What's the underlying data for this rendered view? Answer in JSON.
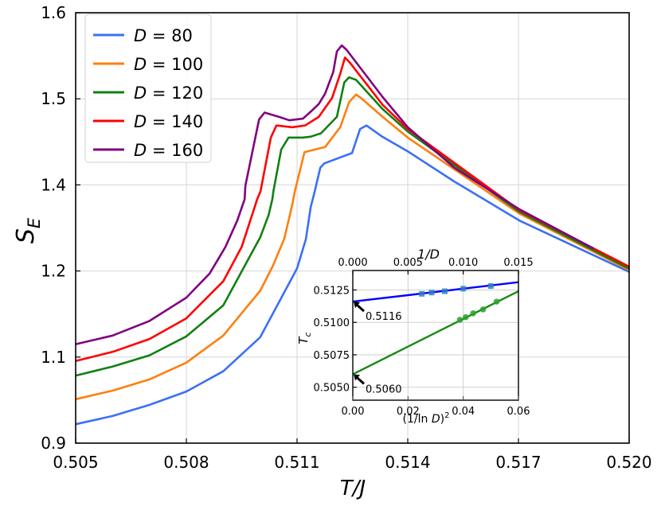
{
  "chart_data": [
    {
      "type": "line",
      "xlabel": "T/J",
      "ylabel": "S_E",
      "xlim": [
        0.505,
        0.52
      ],
      "x_ticks": [
        0.505,
        0.508,
        0.511,
        0.514,
        0.517,
        0.52
      ],
      "x_tick_labels": [
        "0.505",
        "0.508",
        "0.511",
        "0.514",
        "0.517",
        "0.520"
      ],
      "y_ticks": [
        0.9,
        1.1,
        1.2,
        1.4,
        1.5,
        1.6
      ],
      "y_tick_labels": [
        "0.9",
        "1.1",
        "1.2",
        "1.4",
        "1.5",
        "1.6"
      ],
      "y_axis_note_tick_spacing": "equal",
      "grid": true,
      "legend_placement": "top-left",
      "series": [
        {
          "name": "D = 80",
          "legend_var": "D",
          "legend_val": "80",
          "color": "#3b6ff5",
          "x": [
            0.505,
            0.506,
            0.507,
            0.508,
            0.509,
            0.51,
            0.511,
            0.51124,
            0.51137,
            0.51148,
            0.51163,
            0.51174,
            0.51249,
            0.51271,
            0.51288,
            0.51331,
            0.514,
            0.51526,
            0.51703,
            0.52
          ],
          "y": [
            0.944,
            0.963,
            0.989,
            1.02,
            1.067,
            1.123,
            1.206,
            1.274,
            1.348,
            1.385,
            1.42,
            1.425,
            1.437,
            1.465,
            1.469,
            1.456,
            1.439,
            1.404,
            1.317,
            1.199
          ]
        },
        {
          "name": "D = 100",
          "legend_var": "D",
          "legend_val": "100",
          "color": "#ff7f0e",
          "x": [
            0.505,
            0.506,
            0.507,
            0.508,
            0.509,
            0.51,
            0.51035,
            0.51065,
            0.51087,
            0.51094,
            0.5112,
            0.51148,
            0.51176,
            0.51217,
            0.51241,
            0.5126,
            0.51273,
            0.51332,
            0.514,
            0.51703,
            0.52
          ],
          "y": [
            1.002,
            1.022,
            1.048,
            1.087,
            1.125,
            1.177,
            1.213,
            1.274,
            1.354,
            1.385,
            1.438,
            1.441,
            1.444,
            1.467,
            1.496,
            1.505,
            1.501,
            1.479,
            1.455,
            1.333,
            1.202
          ]
        },
        {
          "name": "D = 120",
          "legend_var": "D",
          "legend_val": "120",
          "color": "#118011",
          "x": [
            0.505,
            0.506,
            0.507,
            0.508,
            0.509,
            0.51,
            0.51023,
            0.51033,
            0.51036,
            0.51057,
            0.51077,
            0.51116,
            0.51137,
            0.51165,
            0.51208,
            0.51228,
            0.51241,
            0.5126,
            0.51332,
            0.514,
            0.51703,
            0.52
          ],
          "y": [
            1.057,
            1.078,
            1.102,
            1.124,
            1.16,
            1.278,
            1.33,
            1.367,
            1.385,
            1.441,
            1.455,
            1.455,
            1.456,
            1.46,
            1.479,
            1.519,
            1.525,
            1.522,
            1.488,
            1.462,
            1.337,
            1.205
          ]
        },
        {
          "name": "D = 140",
          "legend_var": "D",
          "legend_val": "140",
          "color": "#ff0000",
          "x": [
            0.505,
            0.506,
            0.507,
            0.508,
            0.509,
            0.5095,
            0.50992,
            0.51001,
            0.51029,
            0.51044,
            0.51087,
            0.51122,
            0.51159,
            0.51195,
            0.51217,
            0.5123,
            0.51245,
            0.51332,
            0.514,
            0.51703,
            0.52
          ],
          "y": [
            1.091,
            1.106,
            1.121,
            1.145,
            1.188,
            1.256,
            1.367,
            1.385,
            1.455,
            1.469,
            1.467,
            1.469,
            1.479,
            1.501,
            1.529,
            1.548,
            1.541,
            1.493,
            1.465,
            1.341,
            1.21
          ]
        },
        {
          "name": "D = 160",
          "legend_var": "D",
          "legend_val": "160",
          "color": "#800080",
          "x": [
            0.505,
            0.506,
            0.507,
            0.508,
            0.50863,
            0.50906,
            0.50938,
            0.50958,
            0.5096,
            0.50997,
            0.51012,
            0.51051,
            0.51079,
            0.51116,
            0.51137,
            0.51159,
            0.51176,
            0.51198,
            0.51208,
            0.51221,
            0.51234,
            0.51332,
            0.514,
            0.51526,
            0.51703,
            0.51904
          ],
          "y": [
            1.115,
            1.125,
            1.142,
            1.169,
            1.197,
            1.256,
            1.317,
            1.367,
            1.398,
            1.476,
            1.484,
            1.479,
            1.475,
            1.477,
            1.485,
            1.494,
            1.506,
            1.531,
            1.555,
            1.562,
            1.557,
            1.502,
            1.467,
            1.42,
            1.343,
            1.252
          ]
        }
      ]
    },
    {
      "type": "scatter",
      "inset": true,
      "ylabel": "T_c",
      "xlabel_bottom": "(1/ln D)^2",
      "xlabel_top": "1/D",
      "xlim_bottom": [
        0.0,
        0.06
      ],
      "xlim_top": [
        0.0,
        0.015
      ],
      "ylim": [
        0.504,
        0.514
      ],
      "x_ticks_bottom": [
        "0.00",
        "0.02",
        "0.04",
        "0.06"
      ],
      "x_ticks_top": [
        "0.000",
        "0.005",
        "0.010",
        "0.015"
      ],
      "y_ticks": [
        "0.5050",
        "0.5075",
        "0.5100",
        "0.5125"
      ],
      "grid": true,
      "series": [
        {
          "axis": "top",
          "color": "#0000ff",
          "marker_color": "#2f7fc1",
          "marker": "square",
          "x": [
            0.00625,
            0.00714,
            0.00833,
            0.01,
            0.0125
          ],
          "y": [
            0.5122,
            0.5123,
            0.5124,
            0.5126,
            0.5128
          ],
          "fit": {
            "intercept": 0.5116,
            "slope": 0.1
          }
        },
        {
          "axis": "bottom",
          "color": "#138a13",
          "marker_color": "#2ca02c",
          "marker": "circle",
          "x": [
            0.0388,
            0.0409,
            0.0436,
            0.0472,
            0.0521
          ],
          "y": [
            0.5102,
            0.5104,
            0.5107,
            0.511,
            0.5116
          ],
          "fit": {
            "intercept": 0.506,
            "slope": 0.1067
          }
        }
      ],
      "annotations": [
        "0.5116",
        "0.5060"
      ]
    }
  ]
}
